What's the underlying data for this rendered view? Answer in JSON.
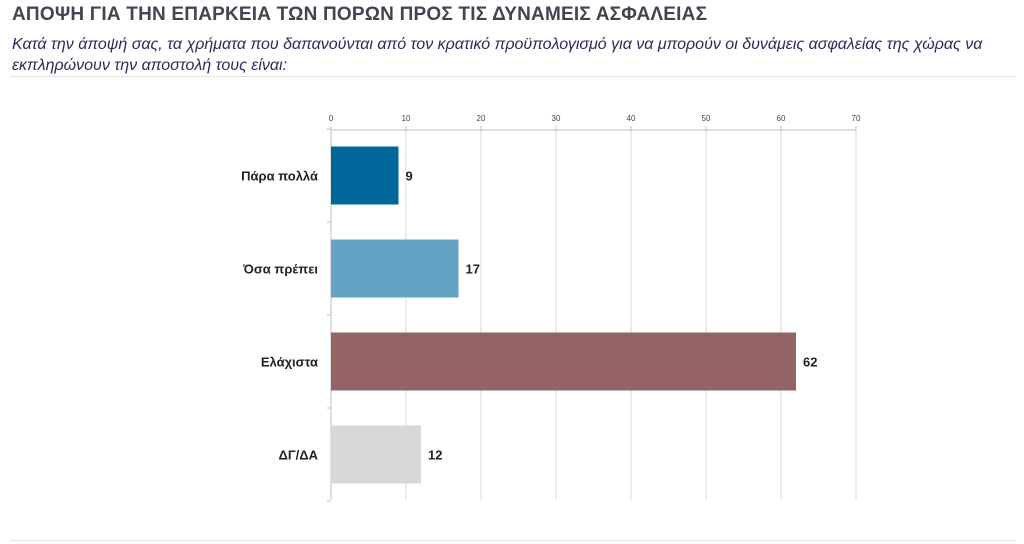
{
  "header": {
    "title": "ΑΠΟΨΗ ΓΙΑ ΤΗΝ ΕΠΑΡΚΕΙΑ ΤΩΝ ΠΟΡΩΝ ΠΡΟΣ ΤΙΣ ΔΥΝΑΜΕΙΣ ΑΣΦΑΛΕΙΑΣ",
    "subtitle": "Κατά την άποψή σας, τα χρήματα που δαπανούνται από τον κρατικό προϋπολογισμό για να μπορούν οι δυνάμεις ασφαλείας της χώρας να εκπληρώνουν την αποστολή τους είναι:"
  },
  "colors": {
    "title": "#4a4150",
    "subtitle": "#2b2b5a",
    "grid": "#d9d9d9",
    "axis": "#bfbfbf"
  },
  "chart_data": {
    "type": "bar",
    "orientation": "horizontal",
    "categories": [
      "Πάρα πολλά",
      "Όσα πρέπει",
      "Ελάχιστα",
      "ΔΓ/ΔΑ"
    ],
    "values": [
      9,
      17,
      62,
      12
    ],
    "data_labels": [
      "9",
      "17",
      "62",
      "12"
    ],
    "bar_colors": [
      "#00679a",
      "#64a3c3",
      "#946464",
      "#d8d8d8"
    ],
    "xlim": [
      0,
      70
    ],
    "xticks": [
      0,
      10,
      20,
      30,
      40,
      50,
      60,
      70
    ],
    "xtick_labels": [
      "0",
      "10",
      "20",
      "30",
      "40",
      "50",
      "60",
      "70"
    ],
    "x_axis_position": "top",
    "grid": true,
    "legend": "none"
  }
}
